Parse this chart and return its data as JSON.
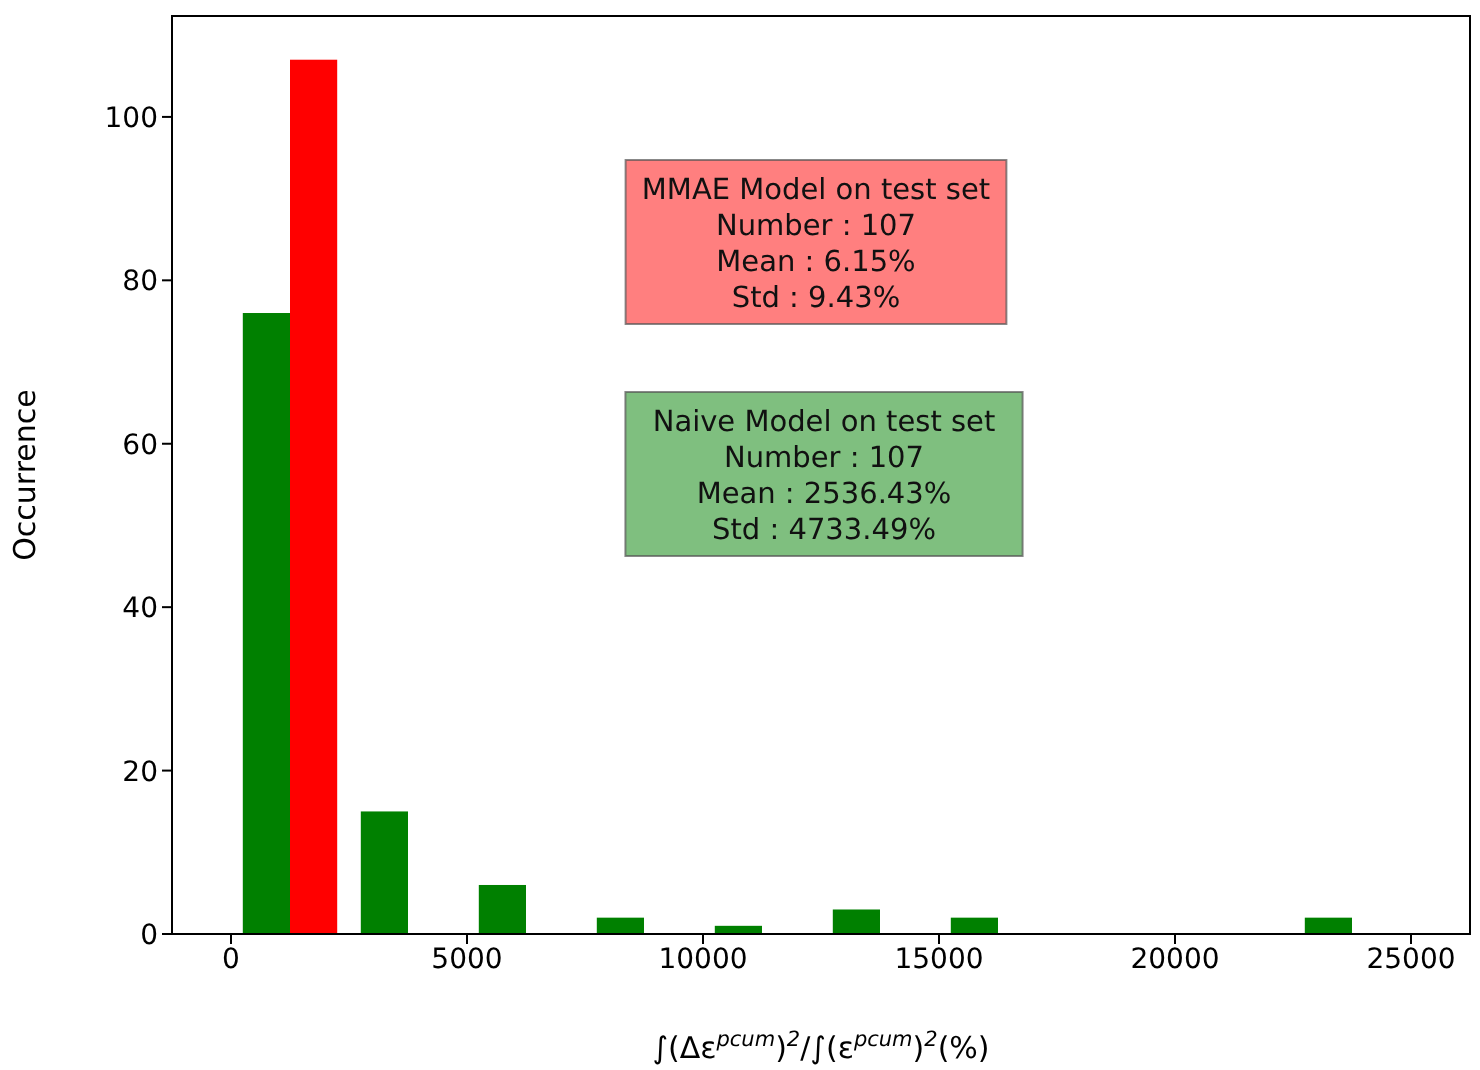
{
  "chart_data": {
    "type": "histogram",
    "xlabel": "∫(Δε$^{pcum}$)$^{2}$/∫(ε$^{pcum}$)$^{2}$(%)",
    "ylabel": "Occurrence",
    "bins": [
      0,
      2500,
      5000,
      7500,
      10000,
      12500,
      15000,
      17500,
      20000,
      22500,
      25000
    ],
    "series": [
      {
        "color": "#008000",
        "values": [
          76,
          15,
          6,
          2,
          1,
          3,
          2,
          0,
          0,
          2
        ]
      },
      {
        "color": "#ff0000",
        "values": [
          107,
          0,
          0,
          0,
          0,
          0,
          0,
          0,
          0,
          0
        ]
      }
    ],
    "annotations": [
      "MMAE Model on test set\nNumber : 107\nMean : 6.15%\nStd : 9.43%",
      "Naive Model on test set\nNumber : 107\nMean : 2536.43%\nStd : 4733.49%"
    ],
    "xlim": [
      -1250,
      26250
    ],
    "ylim": [
      0,
      112.35
    ],
    "xticks": [
      0,
      5000,
      10000,
      15000,
      20000,
      25000
    ],
    "yticks": [
      0,
      20,
      40,
      60,
      80,
      100
    ],
    "grid": false,
    "legend": false
  }
}
